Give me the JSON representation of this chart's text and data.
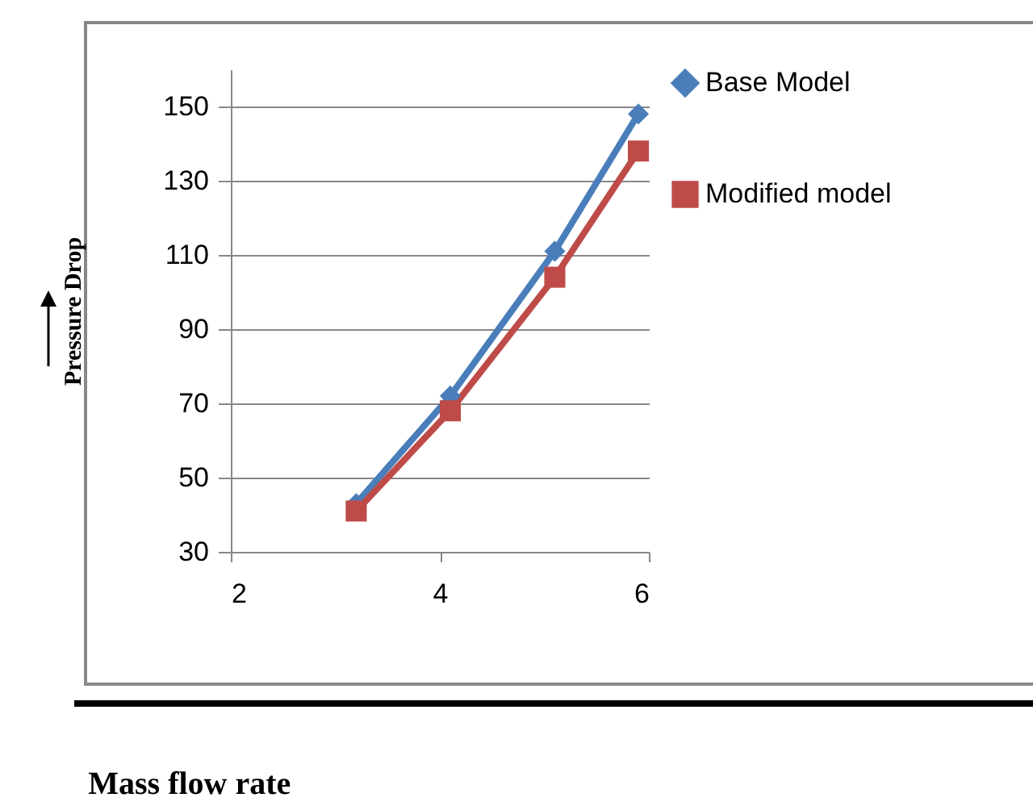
{
  "chart_data": {
    "type": "line",
    "xlabel": "Mass flow rate",
    "ylabel": "Pressure Drop",
    "x": [
      3.2,
      4.1,
      5.1,
      5.9
    ],
    "series": [
      {
        "name": "Base Model",
        "color": "#4a7ebb",
        "marker": "diamond",
        "values": [
          43,
          72,
          111,
          148
        ]
      },
      {
        "name": "Modified model",
        "color": "#be4b48",
        "marker": "square",
        "values": [
          41,
          68,
          104,
          138
        ]
      }
    ],
    "xlim": [
      2,
      6
    ],
    "xticks": [
      2,
      4,
      6
    ],
    "ylim": [
      30,
      160
    ],
    "yticks": [
      30,
      50,
      70,
      90,
      110,
      130,
      150
    ],
    "grid": "y",
    "legend": "right"
  }
}
